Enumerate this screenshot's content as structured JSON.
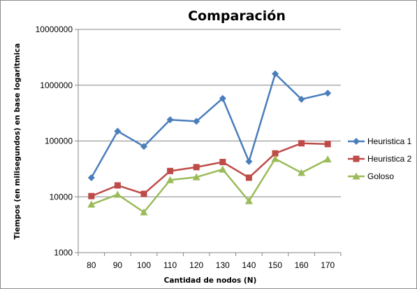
{
  "chart_data": {
    "type": "line",
    "title": "Comparación",
    "xlabel": "Cantidad  de nodos (N)",
    "ylabel": "Tiempos (en milisegundos) en base logaritmica",
    "yscale": "log",
    "ylim": [
      1000,
      10000000
    ],
    "y_ticks": [
      "1000",
      "10000",
      "100000",
      "1000000",
      "10000000"
    ],
    "categories": [
      "80",
      "90",
      "100",
      "110",
      "120",
      "130",
      "140",
      "150",
      "160",
      "170"
    ],
    "grid": true,
    "legend_position": "right",
    "series": [
      {
        "name": "Heuristica 1",
        "color": "#4a7ebb",
        "marker": "diamond",
        "values": [
          22000,
          150000,
          80000,
          240000,
          225000,
          580000,
          43000,
          1600000,
          560000,
          720000
        ]
      },
      {
        "name": "Heuristica 2",
        "color": "#be4b48",
        "marker": "square",
        "values": [
          10300,
          16000,
          11300,
          29000,
          34000,
          42000,
          22000,
          60000,
          91000,
          88000
        ]
      },
      {
        "name": "Goloso",
        "color": "#9bbb59",
        "marker": "triangle",
        "values": [
          7300,
          11000,
          5300,
          20000,
          22500,
          31000,
          8400,
          48000,
          27000,
          47000
        ]
      }
    ]
  }
}
